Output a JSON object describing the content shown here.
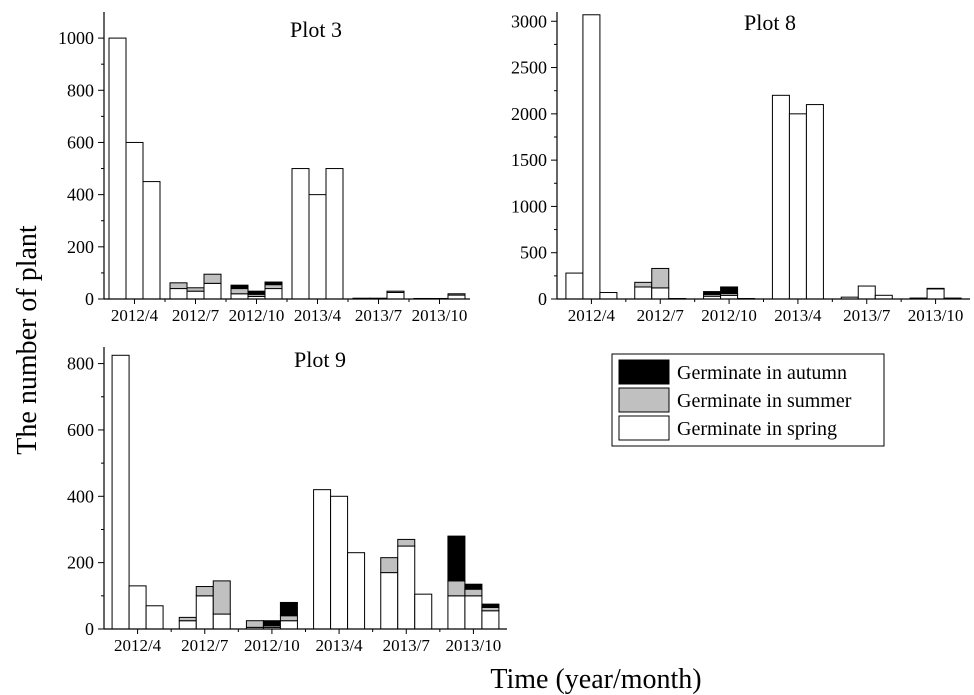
{
  "ylabel": "The number of plant",
  "xlabel": "Time (year/month)",
  "legend": {
    "placement": "lower-right",
    "entries": [
      {
        "label": "Germinate in autumn",
        "color": "#000000"
      },
      {
        "label": "Germinate in summer",
        "color": "#c0c0c0"
      },
      {
        "label": "Germinate in spring",
        "color": "#ffffff"
      }
    ]
  },
  "chart_data": [
    {
      "type": "bar",
      "stacked": true,
      "title": "Plot 3",
      "categories": [
        "2012/4",
        "2012/7",
        "2012/10",
        "2013/4",
        "2013/7",
        "2013/10"
      ],
      "bars_per_category": 3,
      "ylim": [
        0,
        1100
      ],
      "yticks": [
        0,
        200,
        400,
        600,
        800,
        1000
      ],
      "series": [
        {
          "name": "Germinate in spring",
          "values": [
            [
              1000,
              600,
              450
            ],
            [
              40,
              30,
              60
            ],
            [
              20,
              10,
              40
            ],
            [
              500,
              400,
              500
            ],
            [
              3,
              3,
              25
            ],
            [
              2,
              2,
              15
            ]
          ]
        },
        {
          "name": "Germinate in summer",
          "values": [
            [
              0,
              0,
              0
            ],
            [
              22,
              13,
              35
            ],
            [
              20,
              8,
              15
            ],
            [
              0,
              0,
              0
            ],
            [
              0,
              0,
              5
            ],
            [
              0,
              0,
              5
            ]
          ]
        },
        {
          "name": "Germinate in autumn",
          "values": [
            [
              0,
              0,
              0
            ],
            [
              0,
              0,
              0
            ],
            [
              13,
              12,
              10
            ],
            [
              0,
              0,
              0
            ],
            [
              0,
              0,
              0
            ],
            [
              0,
              0,
              0
            ]
          ]
        }
      ]
    },
    {
      "type": "bar",
      "stacked": true,
      "title": "Plot 8",
      "categories": [
        "2012/4",
        "2012/7",
        "2012/10",
        "2013/4",
        "2013/7",
        "2013/10"
      ],
      "bars_per_category": 3,
      "ylim": [
        0,
        3100
      ],
      "yticks": [
        0,
        500,
        1000,
        1500,
        2000,
        2500,
        3000
      ],
      "series": [
        {
          "name": "Germinate in spring",
          "values": [
            [
              280,
              3070,
              70
            ],
            [
              130,
              120,
              5
            ],
            [
              30,
              40,
              5
            ],
            [
              2200,
              2000,
              2100
            ],
            [
              20,
              140,
              40
            ],
            [
              10,
              110,
              10
            ]
          ]
        },
        {
          "name": "Germinate in summer",
          "values": [
            [
              0,
              0,
              0
            ],
            [
              50,
              210,
              0
            ],
            [
              20,
              20,
              0
            ],
            [
              0,
              0,
              0
            ],
            [
              0,
              0,
              0
            ],
            [
              0,
              5,
              0
            ]
          ]
        },
        {
          "name": "Germinate in autumn",
          "values": [
            [
              0,
              0,
              0
            ],
            [
              0,
              0,
              0
            ],
            [
              30,
              70,
              0
            ],
            [
              0,
              0,
              0
            ],
            [
              0,
              0,
              0
            ],
            [
              0,
              0,
              0
            ]
          ]
        }
      ]
    },
    {
      "type": "bar",
      "stacked": true,
      "title": "Plot 9",
      "categories": [
        "2012/4",
        "2012/7",
        "2012/10",
        "2013/4",
        "2013/7",
        "2013/10"
      ],
      "bars_per_category": 3,
      "ylim": [
        0,
        850
      ],
      "yticks": [
        0,
        200,
        400,
        600,
        800
      ],
      "series": [
        {
          "name": "Germinate in spring",
          "values": [
            [
              825,
              130,
              70
            ],
            [
              25,
              100,
              45
            ],
            [
              5,
              5,
              25
            ],
            [
              420,
              400,
              230
            ],
            [
              170,
              250,
              105
            ],
            [
              100,
              100,
              55
            ]
          ]
        },
        {
          "name": "Germinate in summer",
          "values": [
            [
              0,
              0,
              0
            ],
            [
              10,
              28,
              100
            ],
            [
              20,
              5,
              15
            ],
            [
              0,
              0,
              0
            ],
            [
              45,
              20,
              0
            ],
            [
              45,
              20,
              10
            ]
          ]
        },
        {
          "name": "Germinate in autumn",
          "values": [
            [
              0,
              0,
              0
            ],
            [
              0,
              0,
              0
            ],
            [
              0,
              15,
              40
            ],
            [
              0,
              0,
              0
            ],
            [
              0,
              0,
              0
            ],
            [
              135,
              15,
              10
            ]
          ]
        }
      ]
    }
  ]
}
